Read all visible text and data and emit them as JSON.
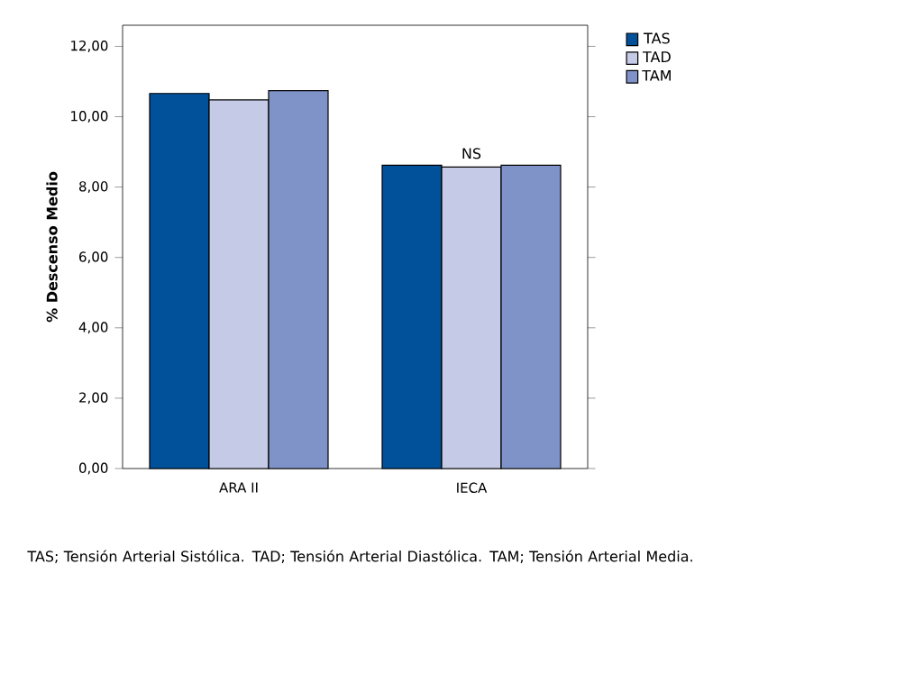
{
  "chart_data": {
    "type": "bar",
    "ylabel": "% Descenso Medio",
    "categories": [
      "ARA II",
      "IECA"
    ],
    "series": [
      {
        "name": "TAS",
        "color": "#00509a",
        "values": [
          10.66,
          8.62
        ]
      },
      {
        "name": "TAD",
        "color": "#c5cae6",
        "values": [
          10.48,
          8.57
        ]
      },
      {
        "name": "TAM",
        "color": "#7f93c8",
        "values": [
          10.74,
          8.62
        ]
      }
    ],
    "ylim": [
      0,
      12.6
    ],
    "yticks": [
      {
        "value": 0,
        "label": "0,00"
      },
      {
        "value": 2,
        "label": "2,00"
      },
      {
        "value": 4,
        "label": "4,00"
      },
      {
        "value": 6,
        "label": "6,00"
      },
      {
        "value": 8,
        "label": "8,00"
      },
      {
        "value": 10,
        "label": "10,00"
      },
      {
        "value": 12,
        "label": "12,00"
      }
    ],
    "legend": "top right",
    "annotations": [
      {
        "text": "NS",
        "x": "IECA",
        "y": 8.62
      },
      "TAS; Tensión Arterial Sistólica. TAD; Tensión Arterial Diastólica. TAM; Tensión Arterial Media."
    ]
  }
}
